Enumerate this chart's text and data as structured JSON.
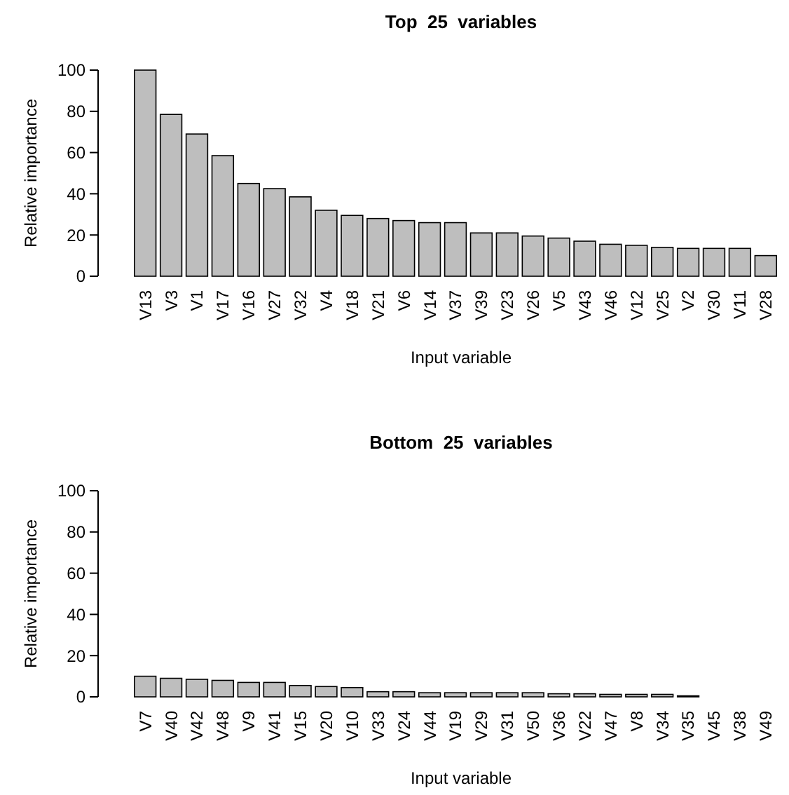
{
  "chart_data": [
    {
      "type": "bar",
      "title": "Top  25  variables",
      "xlabel": "Input variable",
      "ylabel": "Relative importance",
      "categories": [
        "V13",
        "V3",
        "V1",
        "V17",
        "V16",
        "V27",
        "V32",
        "V4",
        "V18",
        "V21",
        "V6",
        "V14",
        "V37",
        "V39",
        "V23",
        "V26",
        "V5",
        "V43",
        "V46",
        "V12",
        "V25",
        "V2",
        "V30",
        "V11",
        "V28"
      ],
      "values": [
        100,
        78.5,
        69,
        58.5,
        45,
        42.5,
        38.5,
        32,
        29.5,
        28,
        27,
        26,
        26,
        21,
        21,
        19.5,
        18.5,
        17,
        15.5,
        15,
        14,
        13.5,
        13.5,
        13.5,
        10
      ],
      "color": "#bebebe",
      "ylim": [
        0,
        100
      ],
      "yticks": [
        0,
        20,
        40,
        60,
        80,
        100
      ],
      "grid": false
    },
    {
      "type": "bar",
      "title": "Bottom  25  variables",
      "xlabel": "Input variable",
      "ylabel": "Relative importance",
      "categories": [
        "V7",
        "V40",
        "V42",
        "V48",
        "V9",
        "V41",
        "V15",
        "V20",
        "V10",
        "V33",
        "V24",
        "V44",
        "V19",
        "V29",
        "V31",
        "V50",
        "V36",
        "V22",
        "V47",
        "V8",
        "V34",
        "V35",
        "V45",
        "V38",
        "V49"
      ],
      "values": [
        10,
        9,
        8.5,
        8,
        7,
        7,
        5.5,
        5,
        4.5,
        2.5,
        2.5,
        2,
        2,
        2,
        2,
        2,
        1.5,
        1.5,
        1.2,
        1.2,
        1.2,
        0.5,
        0,
        0,
        0
      ],
      "color": "#bebebe",
      "ylim": [
        0,
        100
      ],
      "yticks": [
        0,
        20,
        40,
        60,
        80,
        100
      ],
      "grid": false
    }
  ]
}
